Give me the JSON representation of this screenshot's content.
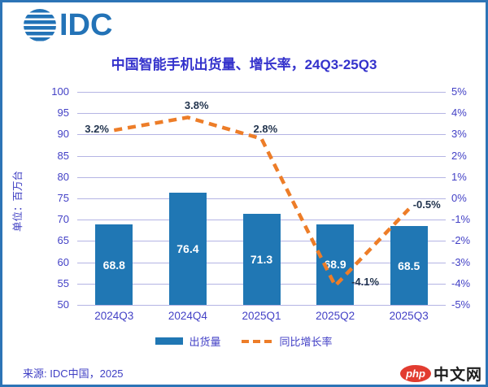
{
  "logo": {
    "text": "IDC"
  },
  "source": "来源: IDC中国，2025",
  "watermark": {
    "badge": "php",
    "text": "中文网"
  },
  "colors": {
    "bar": "#2077b4",
    "line": "#ed7d28",
    "grid": "#b4b4e4",
    "axis_text": "#4341c6",
    "title": "#3432cc",
    "line_value_label": "#22344e",
    "bar_value_label": "#ffffff",
    "frame_border": "#2d74b6",
    "logo_blue": "#2373b7",
    "watermark_red": "#e23c30"
  },
  "chart_data": {
    "type": "bar+line",
    "title": "中国智能手机出货量、增长率，24Q3-25Q3",
    "categories": [
      "2024Q3",
      "2024Q4",
      "2025Q1",
      "2025Q2",
      "2025Q3"
    ],
    "series": [
      {
        "name": "出货量",
        "type": "bar",
        "axis": "left",
        "values": [
          68.8,
          76.4,
          71.3,
          68.9,
          68.5
        ],
        "value_labels": [
          "68.8",
          "76.4",
          "71.3",
          "68.9",
          "68.5"
        ]
      },
      {
        "name": "同比增长率",
        "type": "line",
        "style": "dashed",
        "axis": "right",
        "values": [
          3.2,
          3.8,
          2.8,
          -4.1,
          -0.5
        ],
        "value_labels": [
          "3.2%",
          "3.8%",
          "2.8%",
          "-4.1%",
          "-0.5%"
        ],
        "label_offsets": [
          [
            -36,
            -9
          ],
          [
            -4,
            -22
          ],
          [
            -10,
            -20
          ],
          [
            20,
            -12
          ],
          [
            5,
            -13
          ]
        ]
      }
    ],
    "left_axis": {
      "min": 50,
      "max": 100,
      "step": 5,
      "ticks": [
        "100",
        "95",
        "90",
        "85",
        "80",
        "75",
        "70",
        "65",
        "60",
        "55",
        "50"
      ],
      "unit_label": "单位：百万台"
    },
    "right_axis": {
      "min": -5,
      "max": 5,
      "step": 1,
      "ticks": [
        "5%",
        "4%",
        "3%",
        "2%",
        "1%",
        "0%",
        "-1%",
        "-2%",
        "-3%",
        "-4%",
        "-5%"
      ]
    },
    "legend": [
      "出货量",
      "同比增长率"
    ],
    "grid": true,
    "legend_position": "bottom-center"
  }
}
